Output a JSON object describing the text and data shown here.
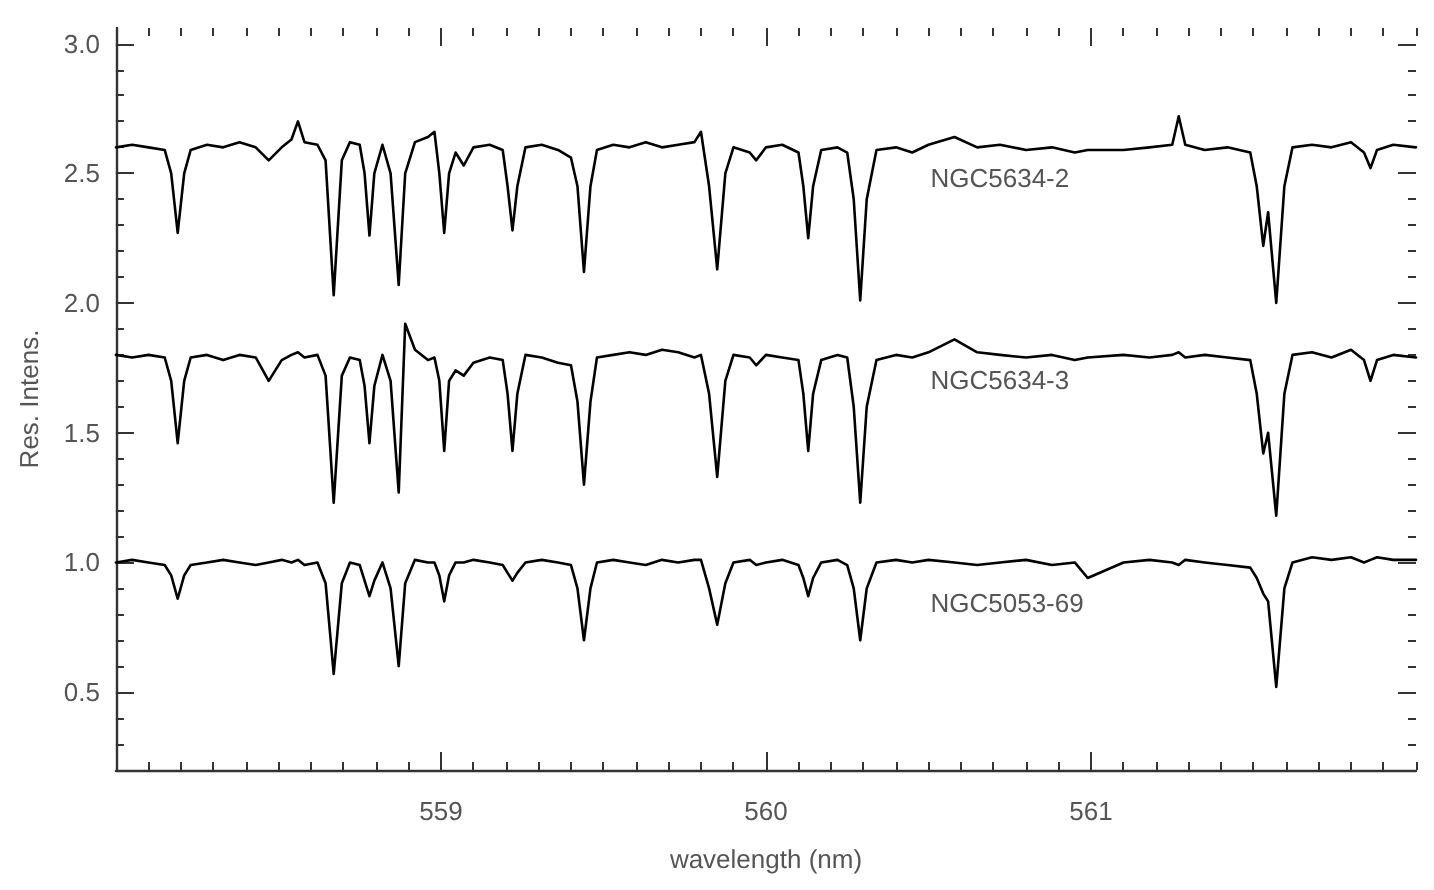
{
  "chart_data": {
    "type": "line",
    "xlabel": "wavelength (nm)",
    "ylabel": "Res. Intens.",
    "x": [
      558.0,
      558.05,
      558.1,
      558.15,
      558.17,
      558.19,
      558.21,
      558.23,
      558.28,
      558.33,
      558.38,
      558.43,
      558.47,
      558.51,
      558.54,
      558.56,
      558.58,
      558.62,
      558.645,
      558.67,
      558.695,
      558.72,
      558.75,
      558.765,
      558.78,
      558.795,
      558.82,
      558.845,
      558.87,
      558.89,
      558.92,
      558.96,
      558.98,
      558.995,
      559.01,
      559.025,
      559.045,
      559.07,
      559.1,
      559.15,
      559.19,
      559.205,
      559.22,
      559.235,
      559.26,
      559.31,
      559.36,
      559.4,
      559.42,
      559.44,
      559.46,
      559.48,
      559.53,
      559.58,
      559.63,
      559.68,
      559.73,
      559.78,
      559.8,
      559.825,
      559.85,
      559.875,
      559.9,
      559.95,
      559.97,
      560.0,
      560.05,
      560.1,
      560.115,
      560.13,
      560.145,
      560.17,
      560.22,
      560.25,
      560.27,
      560.29,
      560.31,
      560.34,
      560.4,
      560.45,
      560.5,
      560.58,
      560.65,
      560.72,
      560.8,
      560.88,
      560.95,
      560.99,
      561.1,
      561.18,
      561.25,
      561.27,
      561.29,
      561.35,
      561.42,
      561.49,
      561.51,
      561.53,
      561.545,
      561.57,
      561.595,
      561.62,
      561.68,
      561.74,
      561.8,
      561.84,
      561.86,
      561.88,
      561.93,
      562.0
    ],
    "series": [
      {
        "name": "NGC5634-2",
        "color": "#000000",
        "values": [
          2.6,
          2.61,
          2.6,
          2.59,
          2.5,
          2.27,
          2.5,
          2.59,
          2.61,
          2.6,
          2.62,
          2.6,
          2.55,
          2.6,
          2.63,
          2.7,
          2.62,
          2.61,
          2.55,
          2.03,
          2.55,
          2.62,
          2.61,
          2.5,
          2.26,
          2.5,
          2.61,
          2.5,
          2.07,
          2.5,
          2.62,
          2.64,
          2.66,
          2.5,
          2.27,
          2.5,
          2.58,
          2.53,
          2.6,
          2.61,
          2.59,
          2.45,
          2.28,
          2.45,
          2.6,
          2.61,
          2.59,
          2.56,
          2.45,
          2.12,
          2.45,
          2.59,
          2.61,
          2.6,
          2.62,
          2.6,
          2.61,
          2.62,
          2.66,
          2.45,
          2.13,
          2.5,
          2.6,
          2.58,
          2.55,
          2.6,
          2.61,
          2.58,
          2.45,
          2.25,
          2.45,
          2.59,
          2.6,
          2.58,
          2.4,
          2.01,
          2.4,
          2.59,
          2.6,
          2.58,
          2.61,
          2.64,
          2.6,
          2.61,
          2.59,
          2.6,
          2.58,
          2.59,
          2.59,
          2.6,
          2.61,
          2.72,
          2.61,
          2.59,
          2.6,
          2.58,
          2.45,
          2.22,
          2.35,
          2.0,
          2.45,
          2.6,
          2.61,
          2.6,
          2.62,
          2.58,
          2.52,
          2.59,
          2.61,
          2.6
        ]
      },
      {
        "name": "NGC5634-3",
        "color": "#000000",
        "values": [
          1.8,
          1.79,
          1.8,
          1.79,
          1.7,
          1.46,
          1.7,
          1.79,
          1.8,
          1.78,
          1.8,
          1.79,
          1.7,
          1.78,
          1.8,
          1.81,
          1.79,
          1.8,
          1.72,
          1.23,
          1.72,
          1.79,
          1.78,
          1.68,
          1.46,
          1.68,
          1.8,
          1.7,
          1.27,
          1.92,
          1.82,
          1.78,
          1.79,
          1.7,
          1.43,
          1.7,
          1.74,
          1.72,
          1.77,
          1.79,
          1.78,
          1.65,
          1.43,
          1.65,
          1.8,
          1.79,
          1.77,
          1.76,
          1.62,
          1.3,
          1.62,
          1.79,
          1.8,
          1.81,
          1.8,
          1.82,
          1.81,
          1.79,
          1.8,
          1.65,
          1.33,
          1.7,
          1.8,
          1.79,
          1.76,
          1.8,
          1.79,
          1.78,
          1.65,
          1.43,
          1.65,
          1.78,
          1.8,
          1.79,
          1.6,
          1.23,
          1.6,
          1.78,
          1.8,
          1.79,
          1.81,
          1.86,
          1.81,
          1.8,
          1.79,
          1.8,
          1.78,
          1.79,
          1.8,
          1.79,
          1.8,
          1.81,
          1.79,
          1.8,
          1.79,
          1.78,
          1.65,
          1.42,
          1.5,
          1.18,
          1.65,
          1.8,
          1.81,
          1.79,
          1.82,
          1.78,
          1.7,
          1.78,
          1.8,
          1.79
        ]
      },
      {
        "name": "NGC5053-69",
        "color": "#000000",
        "values": [
          1.0,
          1.01,
          1.0,
          0.99,
          0.95,
          0.86,
          0.95,
          0.99,
          1.0,
          1.01,
          1.0,
          0.99,
          1.0,
          1.01,
          1.0,
          1.01,
          0.99,
          1.0,
          0.92,
          0.57,
          0.92,
          1.0,
          0.99,
          0.93,
          0.87,
          0.93,
          1.0,
          0.9,
          0.6,
          0.92,
          1.01,
          1.0,
          1.0,
          0.95,
          0.85,
          0.95,
          1.0,
          1.0,
          1.01,
          1.0,
          0.99,
          0.96,
          0.93,
          0.96,
          1.0,
          1.01,
          1.0,
          0.99,
          0.9,
          0.7,
          0.9,
          1.0,
          1.01,
          1.0,
          0.99,
          1.01,
          1.0,
          1.01,
          1.01,
          0.9,
          0.76,
          0.92,
          1.0,
          1.01,
          0.99,
          1.0,
          1.01,
          0.99,
          0.94,
          0.87,
          0.94,
          1.0,
          1.01,
          0.99,
          0.9,
          0.7,
          0.9,
          1.0,
          1.01,
          1.0,
          1.01,
          1.0,
          0.99,
          1.0,
          1.01,
          0.99,
          1.0,
          0.94,
          1.0,
          1.01,
          1.0,
          0.99,
          1.01,
          1.0,
          0.99,
          0.98,
          0.94,
          0.88,
          0.85,
          0.52,
          0.9,
          1.0,
          1.02,
          1.01,
          1.02,
          1.0,
          1.01,
          1.02,
          1.01,
          1.01
        ]
      }
    ],
    "xlim": [
      558,
      562
    ],
    "xticks": [
      559,
      560,
      561
    ],
    "ylim": [
      0.2,
      3.06
    ],
    "yticks": [
      0.5,
      {
        "value": 1,
        "label": "1.0"
      },
      1.5,
      {
        "value": 2,
        "label": "2.0"
      },
      2.5,
      {
        "value": 3,
        "label": "3.0"
      }
    ],
    "grid": false,
    "legend": false,
    "marker": "none",
    "line_style": "solid"
  }
}
